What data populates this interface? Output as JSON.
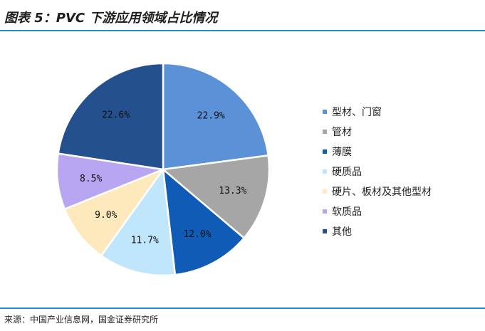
{
  "header": {
    "title": "图表 5：PVC 下游应用领域占比情况"
  },
  "footer": {
    "source": "来源：中国产业信息网，国金证券研究所"
  },
  "chart_data": {
    "type": "pie",
    "title": "图表 5：PVC 下游应用领域占比情况",
    "unit": "%",
    "start_angle_deg": 0,
    "direction": "clockwise",
    "legend_position": "right",
    "slices": [
      {
        "label": "型材、门窗",
        "value": 22.9,
        "display": "22.9%",
        "color": "#5b91d6"
      },
      {
        "label": "管材",
        "value": 13.3,
        "display": "13.3%",
        "color": "#a6a6a6"
      },
      {
        "label": "薄膜",
        "value": 12.0,
        "display": "12.0%",
        "color": "#0f5bb5"
      },
      {
        "label": "硬质品",
        "value": 11.7,
        "display": "11.7%",
        "color": "#bfe6fb"
      },
      {
        "label": "硬片、板材及其他型材",
        "value": 9.0,
        "display": "9.0%",
        "color": "#fde9bc"
      },
      {
        "label": "软质品",
        "value": 8.5,
        "display": "8.5%",
        "color": "#b9a6f2"
      },
      {
        "label": "其他",
        "value": 22.6,
        "display": "22.6%",
        "color": "#24508e"
      }
    ]
  }
}
